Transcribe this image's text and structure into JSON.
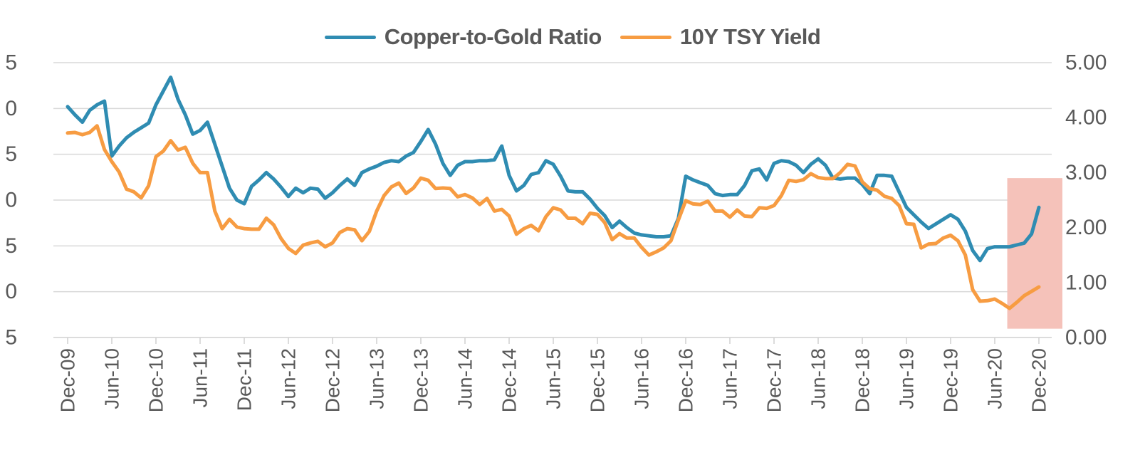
{
  "legend": {
    "items": [
      {
        "id": "copper-gold",
        "label": "Copper-to-Gold Ratio",
        "color": "#2F8CB2"
      },
      {
        "id": "tsy-10y",
        "label": "10Y TSY Yield",
        "color": "#F79C42"
      }
    ]
  },
  "axes": {
    "left_tick_labels_shown": [
      "5",
      "0",
      "5",
      "0",
      "5",
      "0",
      "5"
    ],
    "right_tick_labels": [
      "5.00",
      "4.00",
      "3.00",
      "2.00",
      "1.00",
      "0.00"
    ],
    "x_tick_labels": [
      "Dec-09",
      "Jun-10",
      "Dec-10",
      "Jun-11",
      "Dec-11",
      "Jun-12",
      "Dec-12",
      "Jun-13",
      "Dec-13",
      "Jun-14",
      "Dec-14",
      "Jun-15",
      "Dec-15",
      "Jun-16",
      "Dec-16",
      "Jun-17",
      "Dec-17",
      "Jun-18",
      "Dec-18",
      "Jun-19",
      "Dec-19",
      "Jun-20",
      "Dec-20"
    ]
  },
  "colors": {
    "blue": "#2F8CB2",
    "orange": "#F79C42",
    "highlight_pink": "#F5C2BA",
    "gridline": "#D9D9D9",
    "axis_line": "#D0D0D0",
    "axis_text": "#595959"
  },
  "chart_data": {
    "type": "line",
    "title": "",
    "x_unit": "monthly, Dec-2009 through Dec-2020",
    "x_tick_labels": [
      "Dec-09",
      "Jun-10",
      "Dec-10",
      "Jun-11",
      "Dec-11",
      "Jun-12",
      "Dec-12",
      "Jun-13",
      "Dec-13",
      "Jun-14",
      "Dec-14",
      "Jun-15",
      "Dec-15",
      "Jun-16",
      "Dec-16",
      "Jun-17",
      "Dec-17",
      "Jun-18",
      "Dec-18",
      "Jun-19",
      "Dec-19",
      "Jun-20",
      "Dec-20"
    ],
    "x_ticks_every_n_months": 6,
    "grid": true,
    "legend_position": "top-center",
    "left_axis": {
      "range": [
        15,
        45
      ],
      "gridline_step": 5,
      "tick_labels_shown": [
        "5",
        "0",
        "5",
        "0",
        "5",
        "0",
        "5"
      ]
    },
    "right_axis": {
      "range": [
        0,
        5
      ],
      "tick_labels": [
        "5.00",
        "4.00",
        "3.00",
        "2.00",
        "1.00",
        "0.00"
      ]
    },
    "series": [
      {
        "name": "Copper-to-Gold Ratio",
        "axis": "left",
        "color": "#2F8CB2",
        "values": [
          40.2,
          39.3,
          38.5,
          39.8,
          40.4,
          40.8,
          34.8,
          35.9,
          36.8,
          37.4,
          37.9,
          38.4,
          40.4,
          41.9,
          43.4,
          41.0,
          39.3,
          37.2,
          37.6,
          38.5,
          36.1,
          33.7,
          31.3,
          30.0,
          29.6,
          31.5,
          32.2,
          33.0,
          32.3,
          31.4,
          30.4,
          31.3,
          30.8,
          31.3,
          31.2,
          30.2,
          30.8,
          31.6,
          32.3,
          31.6,
          33.0,
          33.4,
          33.7,
          34.1,
          34.3,
          34.2,
          34.8,
          35.2,
          36.4,
          37.7,
          36.1,
          34.0,
          32.7,
          33.8,
          34.2,
          34.2,
          34.3,
          34.3,
          34.4,
          35.9,
          32.7,
          31.0,
          31.6,
          32.8,
          33.0,
          34.3,
          33.9,
          32.6,
          31.0,
          30.9,
          30.9,
          30.1,
          29.1,
          28.3,
          27.0,
          27.7,
          27.0,
          26.4,
          26.2,
          26.1,
          26.0,
          26.0,
          26.1,
          28.0,
          32.6,
          32.2,
          31.9,
          31.6,
          30.7,
          30.5,
          30.6,
          30.6,
          31.6,
          33.2,
          33.4,
          32.2,
          34.0,
          34.3,
          34.2,
          33.8,
          33.0,
          33.9,
          34.5,
          33.8,
          32.4,
          32.3,
          32.4,
          32.4,
          31.7,
          30.7,
          32.7,
          32.7,
          32.6,
          30.9,
          29.2,
          28.4,
          27.6,
          26.9,
          27.4,
          27.9,
          28.4,
          27.9,
          26.6,
          24.5,
          23.4,
          24.7,
          24.9,
          24.9,
          24.9,
          25.1,
          25.3,
          26.3,
          29.2
        ]
      },
      {
        "name": "10Y TSY Yield",
        "axis": "right",
        "color": "#F79C42",
        "values": [
          3.72,
          3.73,
          3.69,
          3.73,
          3.85,
          3.42,
          3.2,
          3.01,
          2.7,
          2.65,
          2.54,
          2.76,
          3.29,
          3.39,
          3.58,
          3.41,
          3.46,
          3.17,
          3.0,
          3.0,
          2.3,
          1.98,
          2.15,
          2.01,
          1.98,
          1.97,
          1.97,
          2.17,
          2.05,
          1.8,
          1.62,
          1.53,
          1.68,
          1.72,
          1.75,
          1.65,
          1.72,
          1.91,
          1.98,
          1.96,
          1.76,
          1.93,
          2.3,
          2.58,
          2.74,
          2.81,
          2.62,
          2.72,
          2.9,
          2.86,
          2.71,
          2.72,
          2.71,
          2.56,
          2.6,
          2.54,
          2.42,
          2.53,
          2.3,
          2.33,
          2.21,
          1.88,
          1.98,
          2.04,
          1.94,
          2.2,
          2.36,
          2.32,
          2.17,
          2.17,
          2.07,
          2.26,
          2.24,
          2.09,
          1.78,
          1.89,
          1.81,
          1.81,
          1.64,
          1.5,
          1.56,
          1.63,
          1.76,
          2.14,
          2.49,
          2.43,
          2.42,
          2.48,
          2.3,
          2.3,
          2.19,
          2.32,
          2.21,
          2.2,
          2.36,
          2.35,
          2.4,
          2.58,
          2.86,
          2.84,
          2.87,
          2.98,
          2.91,
          2.89,
          2.89,
          3.0,
          3.15,
          3.12,
          2.83,
          2.71,
          2.68,
          2.57,
          2.53,
          2.4,
          2.07,
          2.06,
          1.63,
          1.7,
          1.71,
          1.81,
          1.86,
          1.76,
          1.5,
          0.87,
          0.66,
          0.67,
          0.7,
          0.62,
          0.53,
          0.64,
          0.76,
          0.84,
          0.92
        ]
      }
    ],
    "highlight_region": {
      "description": "shaded band over the most recent months (Aug-2020 onward)",
      "color": "#F5C2BA",
      "start_month_index": 127.7,
      "right_axis_top": 2.9,
      "right_axis_bottom": 0.16
    }
  }
}
